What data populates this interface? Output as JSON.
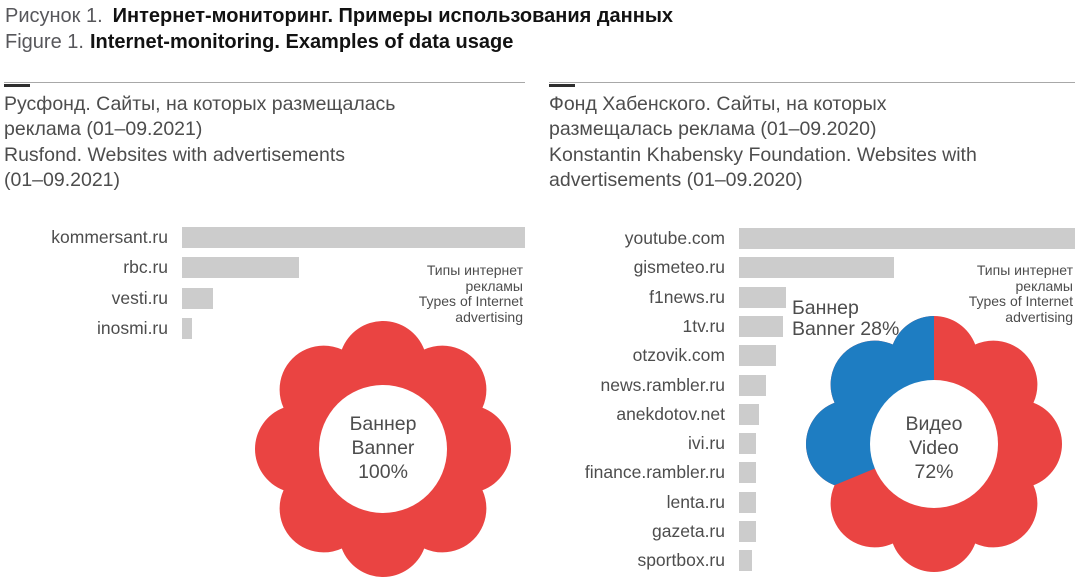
{
  "figure_title": {
    "ru_prefix": "Рисунок 1.",
    "ru_main": "Интернет-мониторинг. Примеры использования данных",
    "en_prefix": "Figure 1.",
    "en_main": "Internet-monitoring. Examples of data usage"
  },
  "colors": {
    "red": "#ea4442",
    "blue": "#1e7dc2",
    "bar_gray": "#cccccc",
    "text_gray": "#4d4d4d"
  },
  "chart_data": [
    {
      "type": "bar",
      "orientation": "horizontal",
      "title_ru_lines": [
        "Русфонд. Сайты, на которых размещалась",
        "реклама (01–09.2021)"
      ],
      "title_en_lines": [
        "Rusfond. Websites with advertisements",
        "(01–09.2021)"
      ],
      "categories": [
        "kommersant.ru",
        "rbc.ru",
        "vesti.ru",
        "inosmi.ru"
      ],
      "values_relative_pct": [
        100,
        34,
        9,
        3
      ],
      "value_axis_labels_shown": false,
      "grid": false,
      "legend_lines": [
        "Типы интернет",
        "рекламы",
        "Types of Internet",
        "advertising"
      ],
      "flower": {
        "type": "pie",
        "segments": [
          {
            "label": "Баннер / Banner",
            "value_pct": 100,
            "color_key": "red"
          }
        ],
        "center_lines": [
          "Баннер",
          "Banner",
          "100%"
        ]
      }
    },
    {
      "type": "bar",
      "orientation": "horizontal",
      "title_ru_lines": [
        "Фонд Хабенского. Сайты, на которых",
        "размещалась реклама (01–09.2020)"
      ],
      "title_en_lines": [
        "Konstantin Khabensky Foundation. Websites with",
        "advertisements (01–09.2020)"
      ],
      "categories": [
        "youtube.com",
        "gismeteo.ru",
        "f1news.ru",
        "1tv.ru",
        "otzovik.com",
        "news.rambler.ru",
        "anekdotov.net",
        "ivi.ru",
        "finance.rambler.ru",
        "lenta.ru",
        "gazeta.ru",
        "sportbox.ru"
      ],
      "values_relative_pct": [
        100,
        46,
        14,
        13,
        11,
        8,
        6,
        5,
        5,
        5,
        5,
        4
      ],
      "value_axis_labels_shown": false,
      "grid": false,
      "legend_lines": [
        "Типы интернет",
        "рекламы",
        "Types of Internet",
        "advertising"
      ],
      "flower": {
        "type": "pie",
        "segments": [
          {
            "label": "Видео / Video",
            "value_pct": 72,
            "color_key": "red"
          },
          {
            "label": "Баннер / Banner",
            "value_pct": 28,
            "color_key": "blue"
          }
        ],
        "center_lines": [
          "Видео",
          "Video",
          "72%"
        ],
        "callout_lines": [
          "Баннер",
          "Banner 28%"
        ],
        "secondary_visual_deg": 112.5
      }
    }
  ]
}
